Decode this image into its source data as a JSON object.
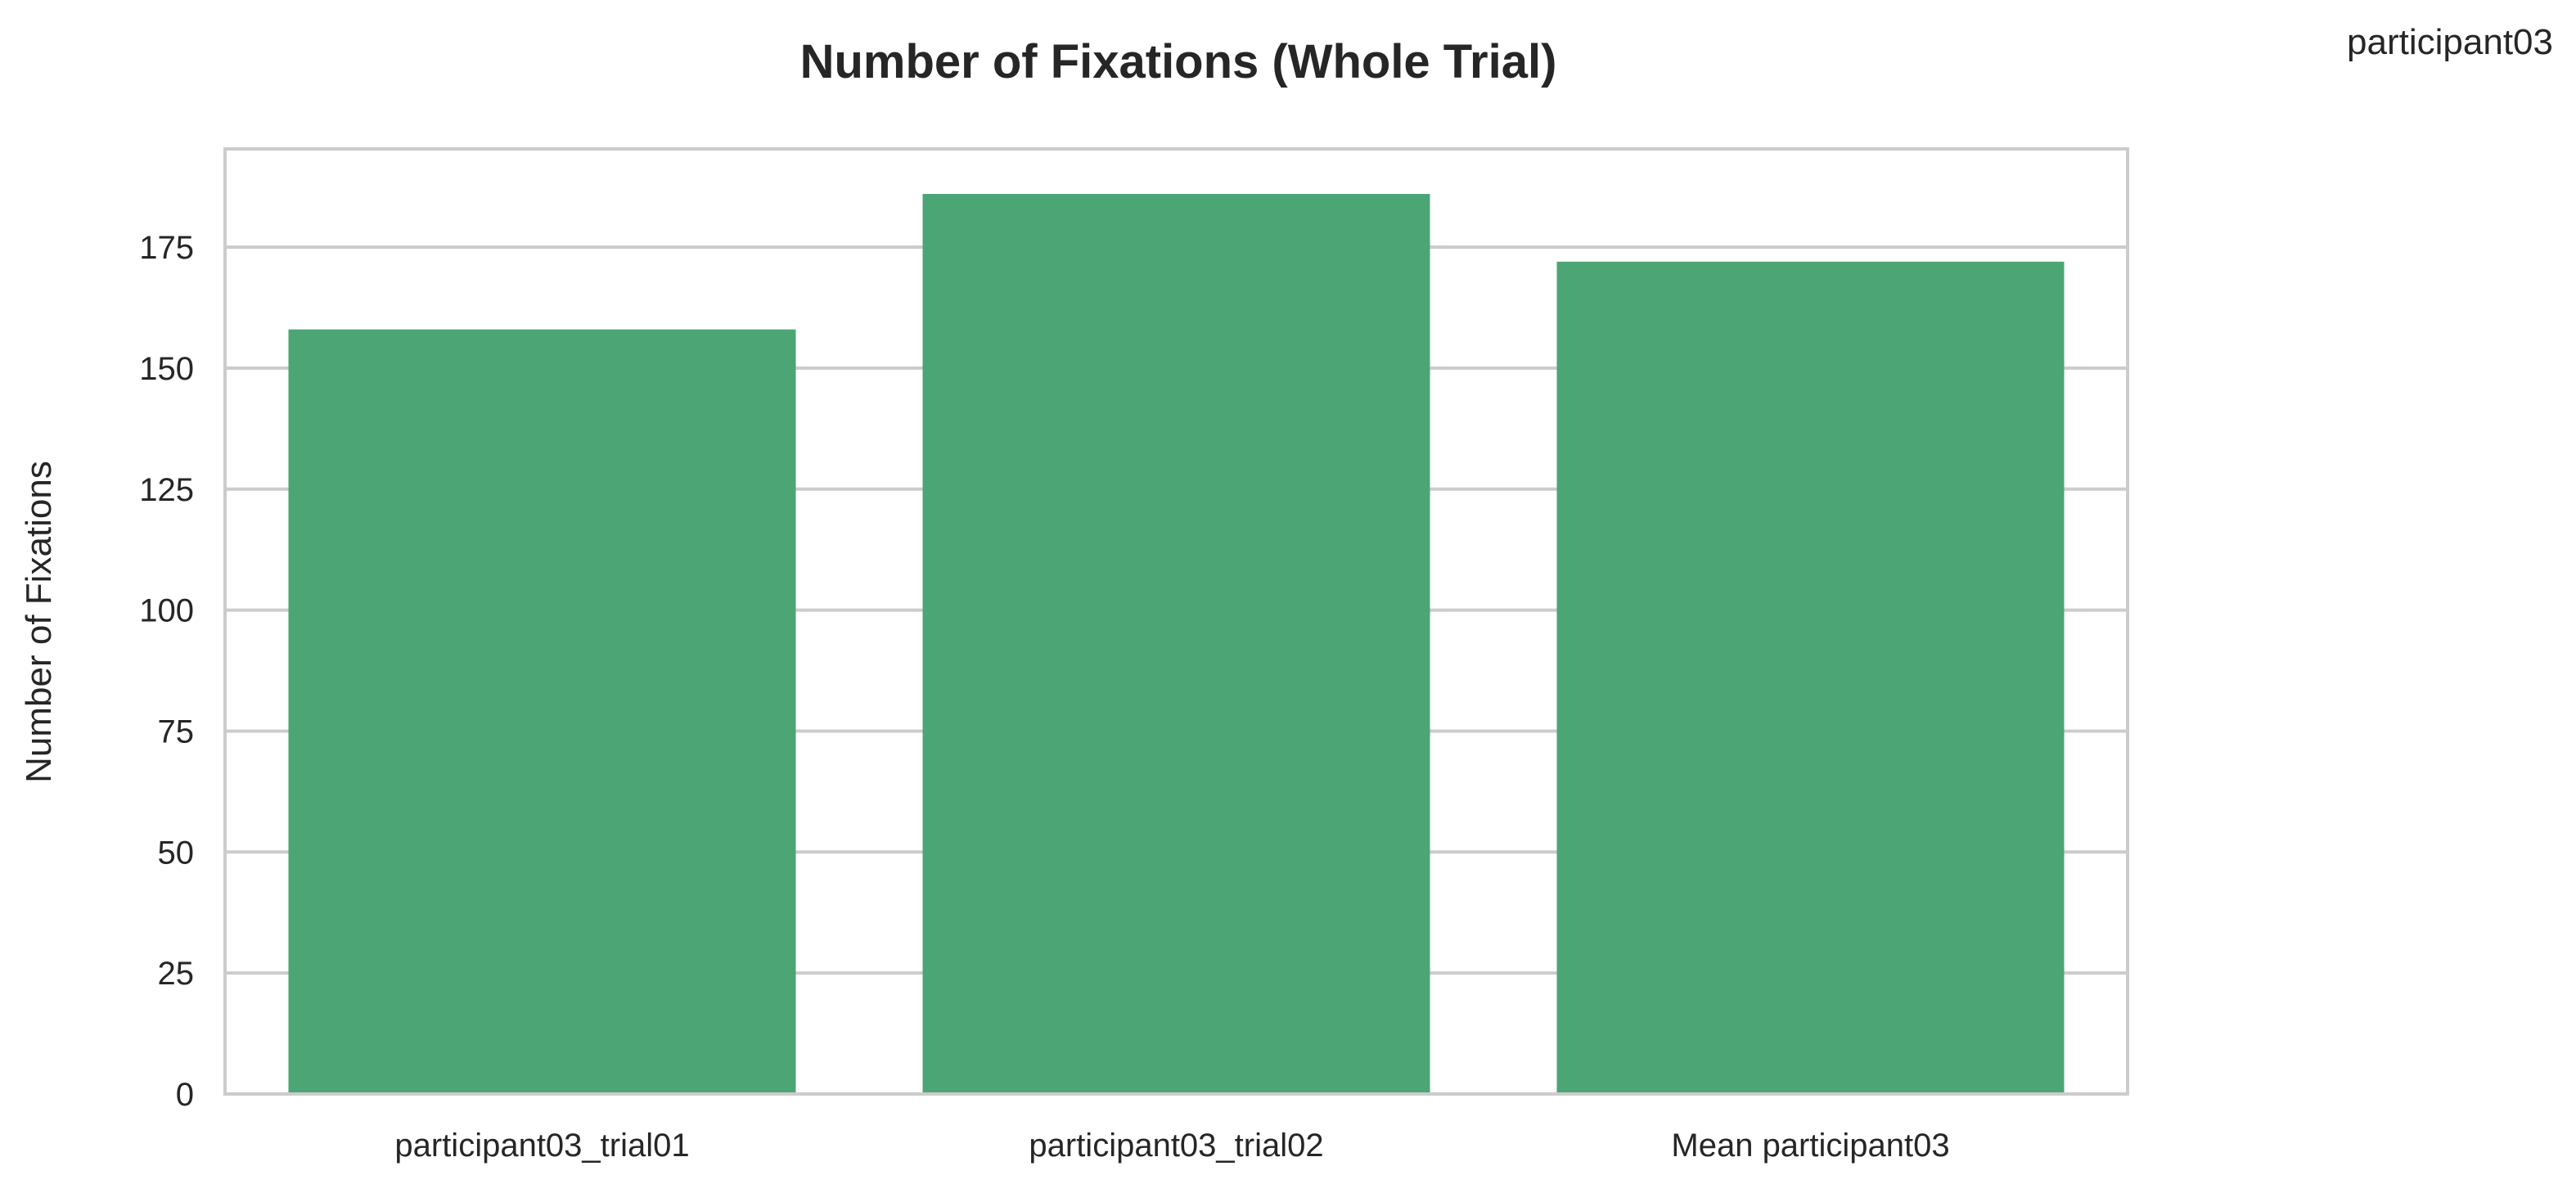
{
  "corner_label": "participant03",
  "chart_data": {
    "type": "bar",
    "title": "Number of Fixations (Whole Trial)",
    "xlabel": "",
    "ylabel": "Number of Fixations",
    "categories": [
      "participant03_trial01",
      "participant03_trial02",
      "Mean participant03"
    ],
    "values": [
      158,
      186,
      172
    ],
    "ylim": [
      0,
      195.3
    ],
    "yticks": [
      0,
      25,
      50,
      75,
      100,
      125,
      150,
      175
    ],
    "grid": "horizontal",
    "bar_color": "#4ca574",
    "grid_color": "#cccccc"
  }
}
